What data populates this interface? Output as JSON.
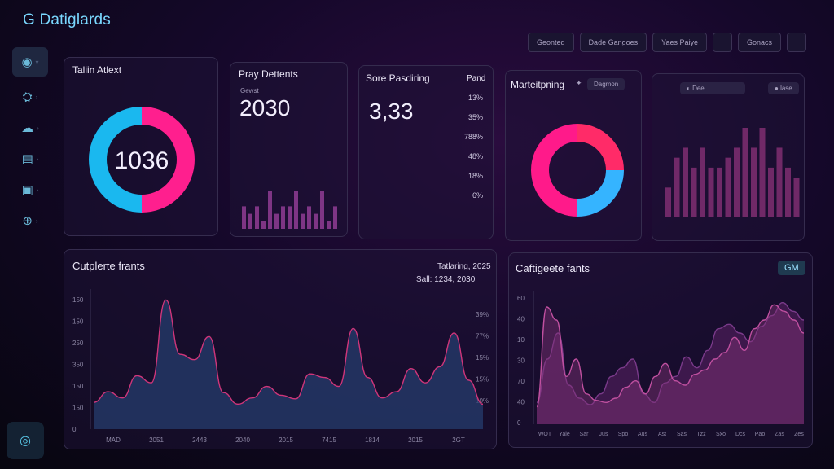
{
  "app": {
    "title": "G Datiglards"
  },
  "topbar": {
    "buttons": [
      "Geonted",
      "Dade Gangoes",
      "Yaes Paiye",
      "",
      "Gonacs",
      ""
    ]
  },
  "sidebar": {
    "items": [
      {
        "icon": "circle-icon"
      },
      {
        "icon": "person-icon"
      },
      {
        "icon": "cloud-icon"
      },
      {
        "icon": "document-icon"
      },
      {
        "icon": "folder-icon"
      },
      {
        "icon": "globe-icon"
      }
    ]
  },
  "panel1": {
    "title": "Taliin Atlext",
    "center_value": "1036"
  },
  "panel2": {
    "title": "Pray Dettents",
    "sub": "Gewst",
    "value": "2030"
  },
  "panel3": {
    "title": "Sore Pasdiring",
    "value": "3,33",
    "col_header": "Pand",
    "rows": [
      "13%",
      "35%",
      "788%",
      "48%",
      "18%",
      "6%"
    ]
  },
  "panel4": {
    "title": "Marteitpning",
    "tag": "Dagmon"
  },
  "panel5": {
    "tag1": "Dee",
    "tag2": "lase"
  },
  "panel6": {
    "title": "Cutplerte frants",
    "meta_line1": "Tatlaring, 2025",
    "meta_line2": "Sall: 1234, 2030",
    "y_left": [
      "150",
      "150",
      "250",
      "350",
      "150",
      "150",
      "0"
    ],
    "y_right": [
      "39%",
      "77%",
      "15%",
      "15%",
      "10%"
    ],
    "x_labels": [
      "MAD",
      "2051",
      "2443",
      "2040",
      "2015",
      "7415",
      "1814",
      "2015",
      "2GT"
    ]
  },
  "panel7": {
    "title": "Caftigeete fants",
    "badge": "GM",
    "y_left": [
      "60",
      "40",
      "10",
      "30",
      "70",
      "40",
      "0"
    ],
    "x_labels": [
      "WOT",
      "Yale",
      "Sar",
      "Jus",
      "Spo",
      "Aus",
      "Ast",
      "Sas",
      "Tzz",
      "Sxo",
      "Dcs",
      "Pao",
      "Zas",
      "Zes"
    ]
  },
  "chart_data": [
    {
      "type": "pie",
      "values": [
        50,
        50
      ],
      "colors": [
        "#ff1f8e",
        "#1ab8ef"
      ],
      "center_label": "1036"
    },
    {
      "type": "bar",
      "values": [
        3,
        2,
        3,
        1,
        5,
        2,
        3,
        3,
        5,
        2,
        3,
        2,
        5,
        1,
        3
      ],
      "color": "#8a3a8e"
    },
    {
      "type": "pie",
      "values": [
        25,
        25,
        50
      ],
      "colors": [
        "#ff2b68",
        "#35b4ff",
        "#ff1a8a"
      ]
    },
    {
      "type": "bar",
      "values": [
        3,
        6,
        7,
        5,
        7,
        5,
        5,
        6,
        7,
        9,
        7,
        9,
        5,
        7,
        5,
        4
      ],
      "color": "#7a2c6e"
    },
    {
      "type": "area",
      "series": [
        {
          "values": [
            30,
            42,
            35,
            60,
            52,
            145,
            84,
            78,
            104,
            41,
            28,
            35,
            48,
            38,
            34,
            62,
            58,
            48,
            113,
            58,
            35,
            42,
            68,
            52,
            70,
            108,
            55,
            28
          ],
          "color": "#d0357a"
        }
      ],
      "ylim": [
        0,
        150
      ]
    },
    {
      "type": "area",
      "series": [
        {
          "values": [
            10,
            30,
            42,
            18,
            12,
            9,
            14,
            22,
            26,
            30,
            14,
            10,
            19,
            22,
            31,
            26,
            34,
            44,
            46,
            42,
            38,
            45,
            50,
            56,
            52,
            48
          ],
          "color": "#7a3a8a"
        },
        {
          "values": [
            8,
            54,
            48,
            22,
            30,
            14,
            11,
            10,
            12,
            17,
            20,
            14,
            22,
            28,
            20,
            18,
            23,
            25,
            30,
            33,
            40,
            34,
            44,
            48,
            55,
            52,
            48,
            42
          ],
          "color": "#c050a0"
        }
      ],
      "ylim": [
        0,
        60
      ]
    }
  ]
}
